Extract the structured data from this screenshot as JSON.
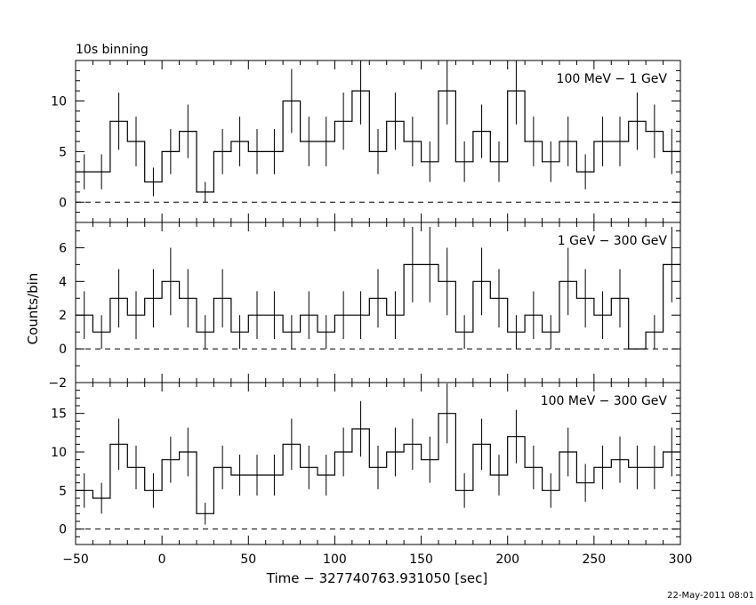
{
  "header": {
    "binning_label": "10s binning"
  },
  "footer": {
    "date_stamp": "22-May-2011 08:01"
  },
  "chart_data": {
    "type": "step",
    "xlabel": "Time − 327740763.931050 [sec]",
    "ylabel": "Counts/bin",
    "xlim": [
      -50,
      300
    ],
    "x_ticks": [
      -50,
      0,
      50,
      100,
      150,
      200,
      250,
      300
    ],
    "x_tick_labels": [
      "−50",
      "0",
      "50",
      "100",
      "150",
      "200",
      "250",
      "300"
    ],
    "bin_width": 10,
    "bin_starts": [
      -50,
      -40,
      -30,
      -20,
      -10,
      0,
      10,
      20,
      30,
      40,
      50,
      60,
      70,
      80,
      90,
      100,
      110,
      120,
      130,
      140,
      150,
      160,
      170,
      180,
      190,
      200,
      210,
      220,
      230,
      240,
      250,
      260,
      270,
      280,
      290
    ],
    "panels": [
      {
        "label": "100 MeV − 1 GeV",
        "ylim": [
          -2,
          14
        ],
        "y_ticks": [
          0,
          5,
          10
        ],
        "y_tick_labels": [
          "0",
          "5",
          "10"
        ],
        "values": [
          3,
          3,
          8,
          6,
          2,
          5,
          7,
          1,
          5,
          6,
          5,
          5,
          10,
          6,
          6,
          8,
          11,
          5,
          8,
          6,
          4,
          11,
          4,
          7,
          4,
          11,
          6,
          4,
          6,
          3,
          6,
          6,
          8,
          7,
          5
        ]
      },
      {
        "label": "1 GeV − 300 GeV",
        "ylim": [
          -2,
          7.5
        ],
        "y_ticks": [
          -2,
          0,
          2,
          4,
          6
        ],
        "y_tick_labels": [
          "−2",
          "0",
          "2",
          "4",
          "6"
        ],
        "values": [
          2,
          1,
          3,
          2,
          3,
          4,
          3,
          1,
          3,
          1,
          2,
          2,
          1,
          2,
          1,
          2,
          2,
          3,
          2,
          5,
          5,
          4,
          1,
          4,
          3,
          1,
          2,
          1,
          4,
          3,
          2,
          3,
          0,
          1,
          5
        ]
      },
      {
        "label": "100 MeV − 300 GeV",
        "ylim": [
          -2,
          19
        ],
        "y_ticks": [
          0,
          5,
          10,
          15
        ],
        "y_tick_labels": [
          "0",
          "5",
          "10",
          "15"
        ],
        "values": [
          5,
          4,
          11,
          8,
          5,
          9,
          10,
          2,
          8,
          7,
          7,
          7,
          11,
          8,
          7,
          10,
          13,
          8,
          10,
          11,
          9,
          15,
          5,
          11,
          7,
          12,
          8,
          5,
          10,
          6,
          8,
          9,
          8,
          8,
          10
        ]
      }
    ]
  }
}
